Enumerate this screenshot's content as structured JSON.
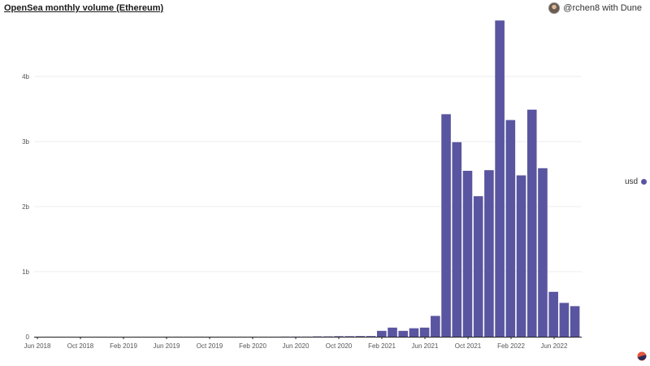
{
  "header": {
    "title": "OpenSea monthly volume (Ethereum)",
    "attribution_user": "@rchen8 with ",
    "attribution_brand": "Dune"
  },
  "colors": {
    "bar": "#5a55a0",
    "brand": "#e2563d",
    "grid": "#eeeeee",
    "axis": "#222222"
  },
  "icons": {
    "avatar": "user-avatar-icon",
    "logo": "dune-logo-icon"
  },
  "chart_data": {
    "type": "bar",
    "title": "OpenSea monthly volume (Ethereum)",
    "xlabel": "",
    "ylabel": "",
    "ylim": [
      0,
      4.9
    ],
    "y_unit": "billion USD",
    "y_ticks": [
      0,
      1,
      2,
      3,
      4
    ],
    "y_tick_labels": [
      "0",
      "1b",
      "2b",
      "3b",
      "4b"
    ],
    "x_tick_labels": [
      "Jun 2018",
      "Oct 2018",
      "Feb 2019",
      "Jun 2019",
      "Oct 2019",
      "Feb 2020",
      "Jun 2020",
      "Oct 2020",
      "Feb 2021",
      "Jun 2021",
      "Oct 2021",
      "Feb 2022",
      "Jun 2022"
    ],
    "categories": [
      "Jun 2018",
      "Jul 2018",
      "Aug 2018",
      "Sep 2018",
      "Oct 2018",
      "Nov 2018",
      "Dec 2018",
      "Jan 2019",
      "Feb 2019",
      "Mar 2019",
      "Apr 2019",
      "May 2019",
      "Jun 2019",
      "Jul 2019",
      "Aug 2019",
      "Sep 2019",
      "Oct 2019",
      "Nov 2019",
      "Dec 2019",
      "Jan 2020",
      "Feb 2020",
      "Mar 2020",
      "Apr 2020",
      "May 2020",
      "Jun 2020",
      "Jul 2020",
      "Aug 2020",
      "Sep 2020",
      "Oct 2020",
      "Nov 2020",
      "Dec 2020",
      "Jan 2021",
      "Feb 2021",
      "Mar 2021",
      "Apr 2021",
      "May 2021",
      "Jun 2021",
      "Jul 2021",
      "Aug 2021",
      "Sep 2021",
      "Oct 2021",
      "Nov 2021",
      "Dec 2021",
      "Jan 2022",
      "Feb 2022",
      "Mar 2022",
      "Apr 2022",
      "May 2022",
      "Jun 2022",
      "Jul 2022",
      "Aug 2022"
    ],
    "series": [
      {
        "name": "usd",
        "values": [
          0.0005,
          0.0005,
          0.0005,
          0.0005,
          0.0005,
          0.0005,
          0.0005,
          0.0005,
          0.0005,
          0.0005,
          0.0005,
          0.0005,
          0.001,
          0.001,
          0.001,
          0.001,
          0.001,
          0.001,
          0.001,
          0.001,
          0.001,
          0.001,
          0.001,
          0.002,
          0.002,
          0.002,
          0.005,
          0.005,
          0.008,
          0.008,
          0.01,
          0.01,
          0.09,
          0.14,
          0.09,
          0.13,
          0.14,
          0.32,
          3.42,
          2.99,
          2.55,
          2.16,
          2.56,
          4.86,
          3.33,
          2.48,
          3.49,
          2.59,
          0.69,
          0.52,
          0.47
        ]
      }
    ],
    "legend": {
      "position": "right",
      "label": "usd"
    },
    "grid": true
  }
}
